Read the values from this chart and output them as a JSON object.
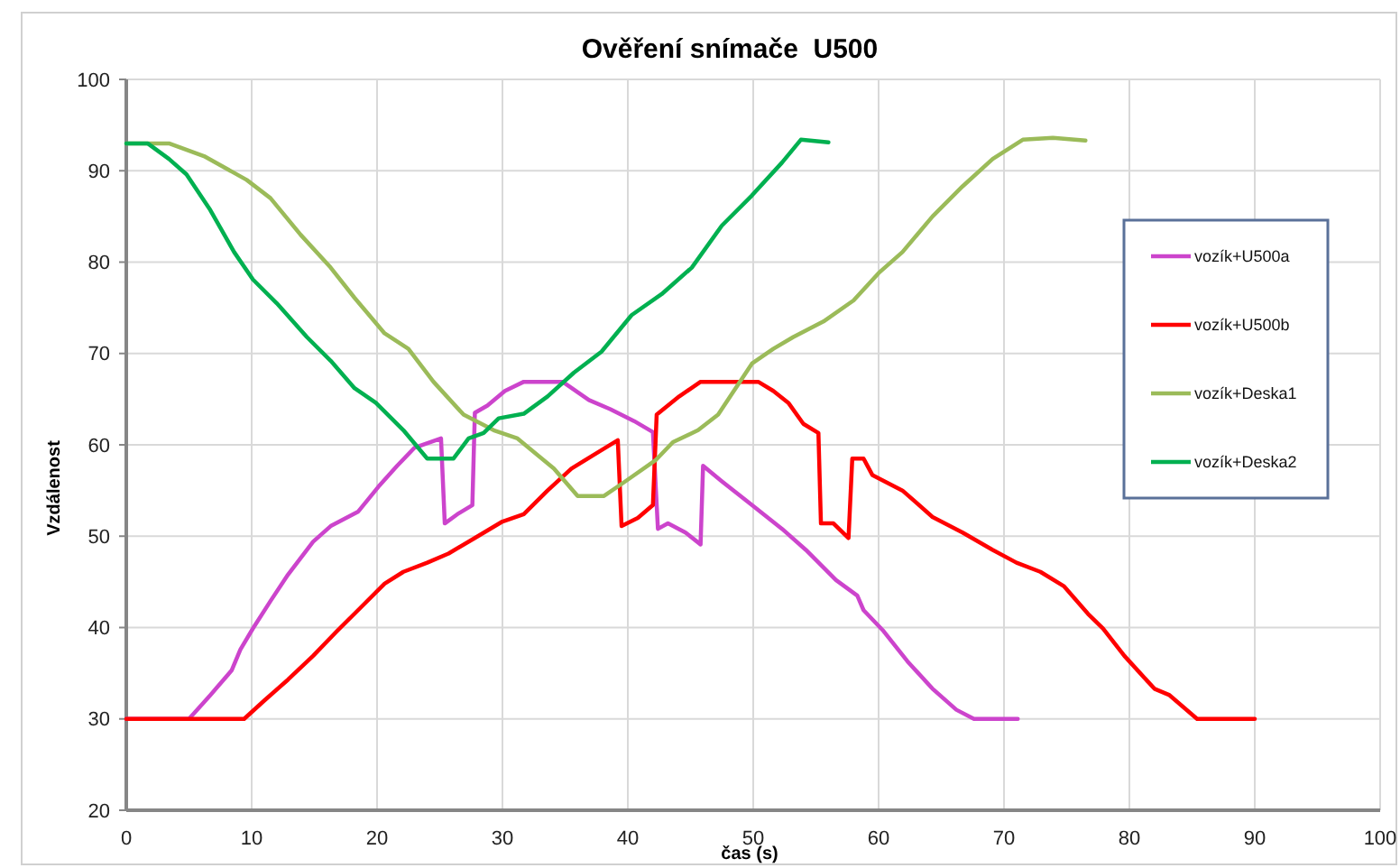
{
  "chart_data": {
    "type": "line",
    "title": "Ověření snímače  U500",
    "xlabel": "čas (s)",
    "ylabel": "Vzdálenost",
    "xlim": [
      0,
      100
    ],
    "xticks": [
      0,
      10,
      20,
      30,
      40,
      50,
      60,
      70,
      80,
      90,
      100
    ],
    "ylim": [
      20,
      100
    ],
    "yticks": [
      20,
      30,
      40,
      50,
      60,
      70,
      80,
      90,
      100
    ],
    "grid": true,
    "legend": "right",
    "series": [
      {
        "name": "vozík+U500a",
        "color": "#cc44cc",
        "x": [
          0,
          5.0,
          6.7,
          8.4,
          9.1,
          10.1,
          11.5,
          12.9,
          14.9,
          16.3,
          18.5,
          20.1,
          21.6,
          23.0,
          25.1,
          25.4,
          26.4,
          27.6,
          27.8,
          28.8,
          30.2,
          31.7,
          34.8,
          36.9,
          38.6,
          40.5,
          42.0,
          42.4,
          43.2,
          44.6,
          45.8,
          46.0,
          47.5,
          49.9,
          52.3,
          54.2,
          56.6,
          58.3,
          58.8,
          60.4,
          62.3,
          64.3,
          66.2,
          67.6,
          71.1
        ],
        "values": [
          30,
          30,
          32.6,
          35.3,
          37.6,
          39.9,
          42.9,
          45.8,
          49.4,
          51.1,
          52.7,
          55.4,
          57.7,
          59.7,
          60.7,
          51.4,
          52.4,
          53.4,
          63.5,
          64.3,
          65.9,
          66.9,
          66.9,
          64.9,
          63.9,
          62.6,
          61.4,
          50.8,
          51.4,
          50.4,
          49.1,
          57.7,
          56.0,
          53.4,
          50.8,
          48.5,
          45.2,
          43.5,
          41.9,
          39.6,
          36.3,
          33.3,
          31.0,
          30,
          30
        ]
      },
      {
        "name": "vozík+U500b",
        "color": "#ff0000",
        "x": [
          0,
          9.4,
          11.0,
          12.9,
          14.9,
          16.8,
          18.7,
          20.6,
          22.1,
          24.0,
          25.7,
          27.8,
          30.0,
          31.7,
          33.6,
          35.5,
          37.4,
          39.2,
          39.5,
          40.8,
          42.0,
          42.3,
          44.1,
          45.8,
          50.4,
          51.6,
          52.8,
          54.0,
          55.2,
          55.4,
          56.4,
          57.6,
          57.9,
          58.8,
          59.5,
          61.9,
          64.3,
          66.7,
          69.1,
          71.0,
          72.9,
          74.8,
          76.7,
          77.9,
          79.6,
          82.0,
          83.2,
          85.4,
          90.0
        ],
        "values": [
          30,
          30,
          32.0,
          34.3,
          36.9,
          39.6,
          42.2,
          44.8,
          46.1,
          47.1,
          48.1,
          49.8,
          51.6,
          52.4,
          55.0,
          57.4,
          59.0,
          60.5,
          51.1,
          52.0,
          53.4,
          63.3,
          65.3,
          66.9,
          66.9,
          65.9,
          64.6,
          62.3,
          61.3,
          51.4,
          51.4,
          49.8,
          58.5,
          58.5,
          56.7,
          55.0,
          52.1,
          50.4,
          48.5,
          47.1,
          46.1,
          44.5,
          41.5,
          39.9,
          36.9,
          33.3,
          32.6,
          30,
          30
        ]
      },
      {
        "name": "vozík+Deska1",
        "color": "#9bbb59",
        "x": [
          0,
          3.4,
          6.2,
          9.6,
          11.5,
          13.9,
          16.3,
          18.2,
          20.6,
          22.5,
          24.5,
          26.9,
          29.3,
          31.2,
          34.1,
          36.0,
          38.1,
          39.8,
          42.2,
          43.6,
          45.6,
          47.2,
          49.9,
          51.6,
          53.2,
          55.6,
          58.0,
          60.0,
          61.9,
          64.3,
          66.7,
          69.1,
          71.5,
          73.9,
          76.5
        ],
        "values": [
          93,
          93,
          91.6,
          89.0,
          87.0,
          83.0,
          79.4,
          76.1,
          72.2,
          70.5,
          66.9,
          63.3,
          61.6,
          60.7,
          57.4,
          54.4,
          54.4,
          56.0,
          58.3,
          60.3,
          61.6,
          63.3,
          68.9,
          70.5,
          71.8,
          73.5,
          75.8,
          78.8,
          81.1,
          85.0,
          88.3,
          91.3,
          93.4,
          93.6,
          93.3
        ]
      },
      {
        "name": "vozík+Deska2",
        "color": "#00b050",
        "x": [
          0,
          1.7,
          3.4,
          4.8,
          6.7,
          8.6,
          10.1,
          12.0,
          14.4,
          16.3,
          18.2,
          19.9,
          22.1,
          24.0,
          26.1,
          27.3,
          28.5,
          29.7,
          31.7,
          33.6,
          35.7,
          37.9,
          40.3,
          42.7,
          45.1,
          47.5,
          49.9,
          52.3,
          53.8,
          56.0
        ],
        "values": [
          93,
          93,
          91.3,
          89.6,
          85.7,
          81.1,
          78.1,
          75.5,
          71.8,
          69.2,
          66.2,
          64.6,
          61.6,
          58.5,
          58.5,
          60.7,
          61.3,
          62.9,
          63.4,
          65.3,
          67.9,
          70.2,
          74.2,
          76.5,
          79.4,
          84.0,
          87.3,
          90.9,
          93.4,
          93.1
        ]
      }
    ]
  }
}
